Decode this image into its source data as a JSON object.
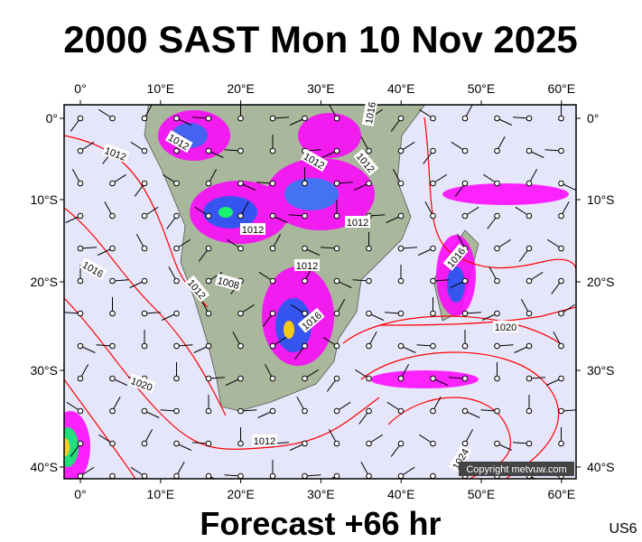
{
  "header": {
    "title": "2000 SAST Mon 10 Nov 2025"
  },
  "map": {
    "x_labels": [
      "0°",
      "10°E",
      "20°E",
      "30°E",
      "40°E",
      "50°E",
      "60°E"
    ],
    "y_labels": [
      "0°",
      "10°S",
      "20°S",
      "30°S",
      "40°S"
    ],
    "isobar_labels": [
      "1012",
      "1012",
      "1016",
      "1012",
      "1008",
      "1012",
      "1012",
      "1016",
      "1012",
      "1012",
      "1012",
      "1016",
      "1016",
      "1020",
      "1020",
      "1012",
      "1024"
    ],
    "copyright": "Copyright metvuw.com"
  },
  "footer": {
    "forecast": "Forecast +66 hr",
    "code": "US6"
  }
}
